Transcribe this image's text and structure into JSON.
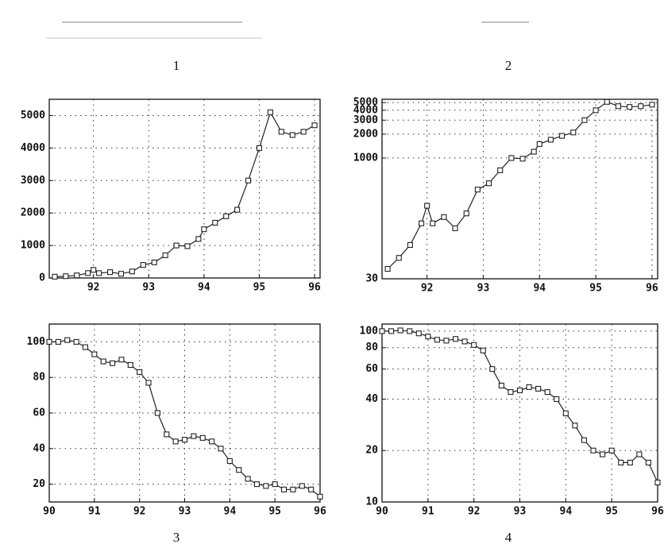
{
  "captions": [
    "1",
    "2",
    "3",
    "4"
  ],
  "chart_data": [
    {
      "type": "line",
      "log": false,
      "grid": true,
      "color": "#222",
      "xlim": [
        91.2,
        96.1
      ],
      "ylim": [
        0,
        5500
      ],
      "xticks": [
        92,
        93,
        94,
        95,
        96
      ],
      "yticks": [
        0,
        1000,
        2000,
        3000,
        4000,
        5000
      ],
      "x": [
        91.3,
        91.5,
        91.7,
        91.9,
        92.0,
        92.1,
        92.3,
        92.5,
        92.7,
        92.9,
        93.1,
        93.3,
        93.5,
        93.7,
        93.9,
        94.0,
        94.2,
        94.4,
        94.6,
        94.8,
        95.0,
        95.2,
        95.4,
        95.6,
        95.8,
        96.0
      ],
      "values": [
        40,
        55,
        80,
        150,
        250,
        150,
        180,
        130,
        200,
        400,
        480,
        700,
        1000,
        980,
        1200,
        1500,
        1700,
        1900,
        2100,
        3000,
        4000,
        5100,
        4500,
        4400,
        4500,
        4700
      ]
    },
    {
      "type": "line",
      "log": true,
      "grid": true,
      "color": "#222",
      "xlim": [
        91.2,
        96.1
      ],
      "ylim": [
        30,
        5500
      ],
      "xticks": [
        92,
        93,
        94,
        95,
        96
      ],
      "yticks": [
        30,
        1000,
        2000,
        3000,
        4000,
        5000
      ],
      "x": [
        91.3,
        91.5,
        91.7,
        91.9,
        92.0,
        92.1,
        92.3,
        92.5,
        92.7,
        92.9,
        93.1,
        93.3,
        93.5,
        93.7,
        93.9,
        94.0,
        94.2,
        94.4,
        94.6,
        94.8,
        95.0,
        95.2,
        95.4,
        95.6,
        95.8,
        96.0
      ],
      "values": [
        40,
        55,
        80,
        150,
        250,
        150,
        180,
        130,
        200,
        400,
        480,
        700,
        1000,
        980,
        1200,
        1500,
        1700,
        1900,
        2100,
        3000,
        4000,
        5100,
        4500,
        4400,
        4500,
        4700
      ]
    },
    {
      "type": "line",
      "log": false,
      "grid": true,
      "color": "#222",
      "xlim": [
        90,
        96
      ],
      "ylim": [
        10,
        110
      ],
      "xticks": [
        90,
        91,
        92,
        93,
        94,
        95,
        96
      ],
      "yticks": [
        20,
        40,
        60,
        80,
        100
      ],
      "x": [
        90.0,
        90.2,
        90.4,
        90.6,
        90.8,
        91.0,
        91.2,
        91.4,
        91.6,
        91.8,
        92.0,
        92.2,
        92.4,
        92.6,
        92.8,
        93.0,
        93.2,
        93.4,
        93.6,
        93.8,
        94.0,
        94.2,
        94.4,
        94.6,
        94.8,
        95.0,
        95.2,
        95.4,
        95.6,
        95.8,
        96.0
      ],
      "values": [
        100,
        100,
        101,
        100,
        97,
        93,
        89,
        88,
        90,
        87,
        83,
        77,
        60,
        48,
        44,
        45,
        47,
        46,
        44,
        40,
        33,
        28,
        23,
        20,
        19,
        20,
        17,
        17,
        19,
        17,
        13
      ]
    },
    {
      "type": "line",
      "log": true,
      "grid": true,
      "color": "#222",
      "xlim": [
        90,
        96
      ],
      "ylim": [
        10,
        110
      ],
      "xticks": [
        90,
        91,
        92,
        93,
        94,
        95,
        96
      ],
      "yticks": [
        10,
        20,
        40,
        60,
        80,
        100
      ],
      "x": [
        90.0,
        90.2,
        90.4,
        90.6,
        90.8,
        91.0,
        91.2,
        91.4,
        91.6,
        91.8,
        92.0,
        92.2,
        92.4,
        92.6,
        92.8,
        93.0,
        93.2,
        93.4,
        93.6,
        93.8,
        94.0,
        94.2,
        94.4,
        94.6,
        94.8,
        95.0,
        95.2,
        95.4,
        95.6,
        95.8,
        96.0
      ],
      "values": [
        100,
        100,
        101,
        100,
        97,
        93,
        89,
        88,
        90,
        87,
        83,
        77,
        60,
        48,
        44,
        45,
        47,
        46,
        44,
        40,
        33,
        28,
        23,
        20,
        19,
        20,
        17,
        17,
        19,
        17,
        13
      ]
    }
  ]
}
